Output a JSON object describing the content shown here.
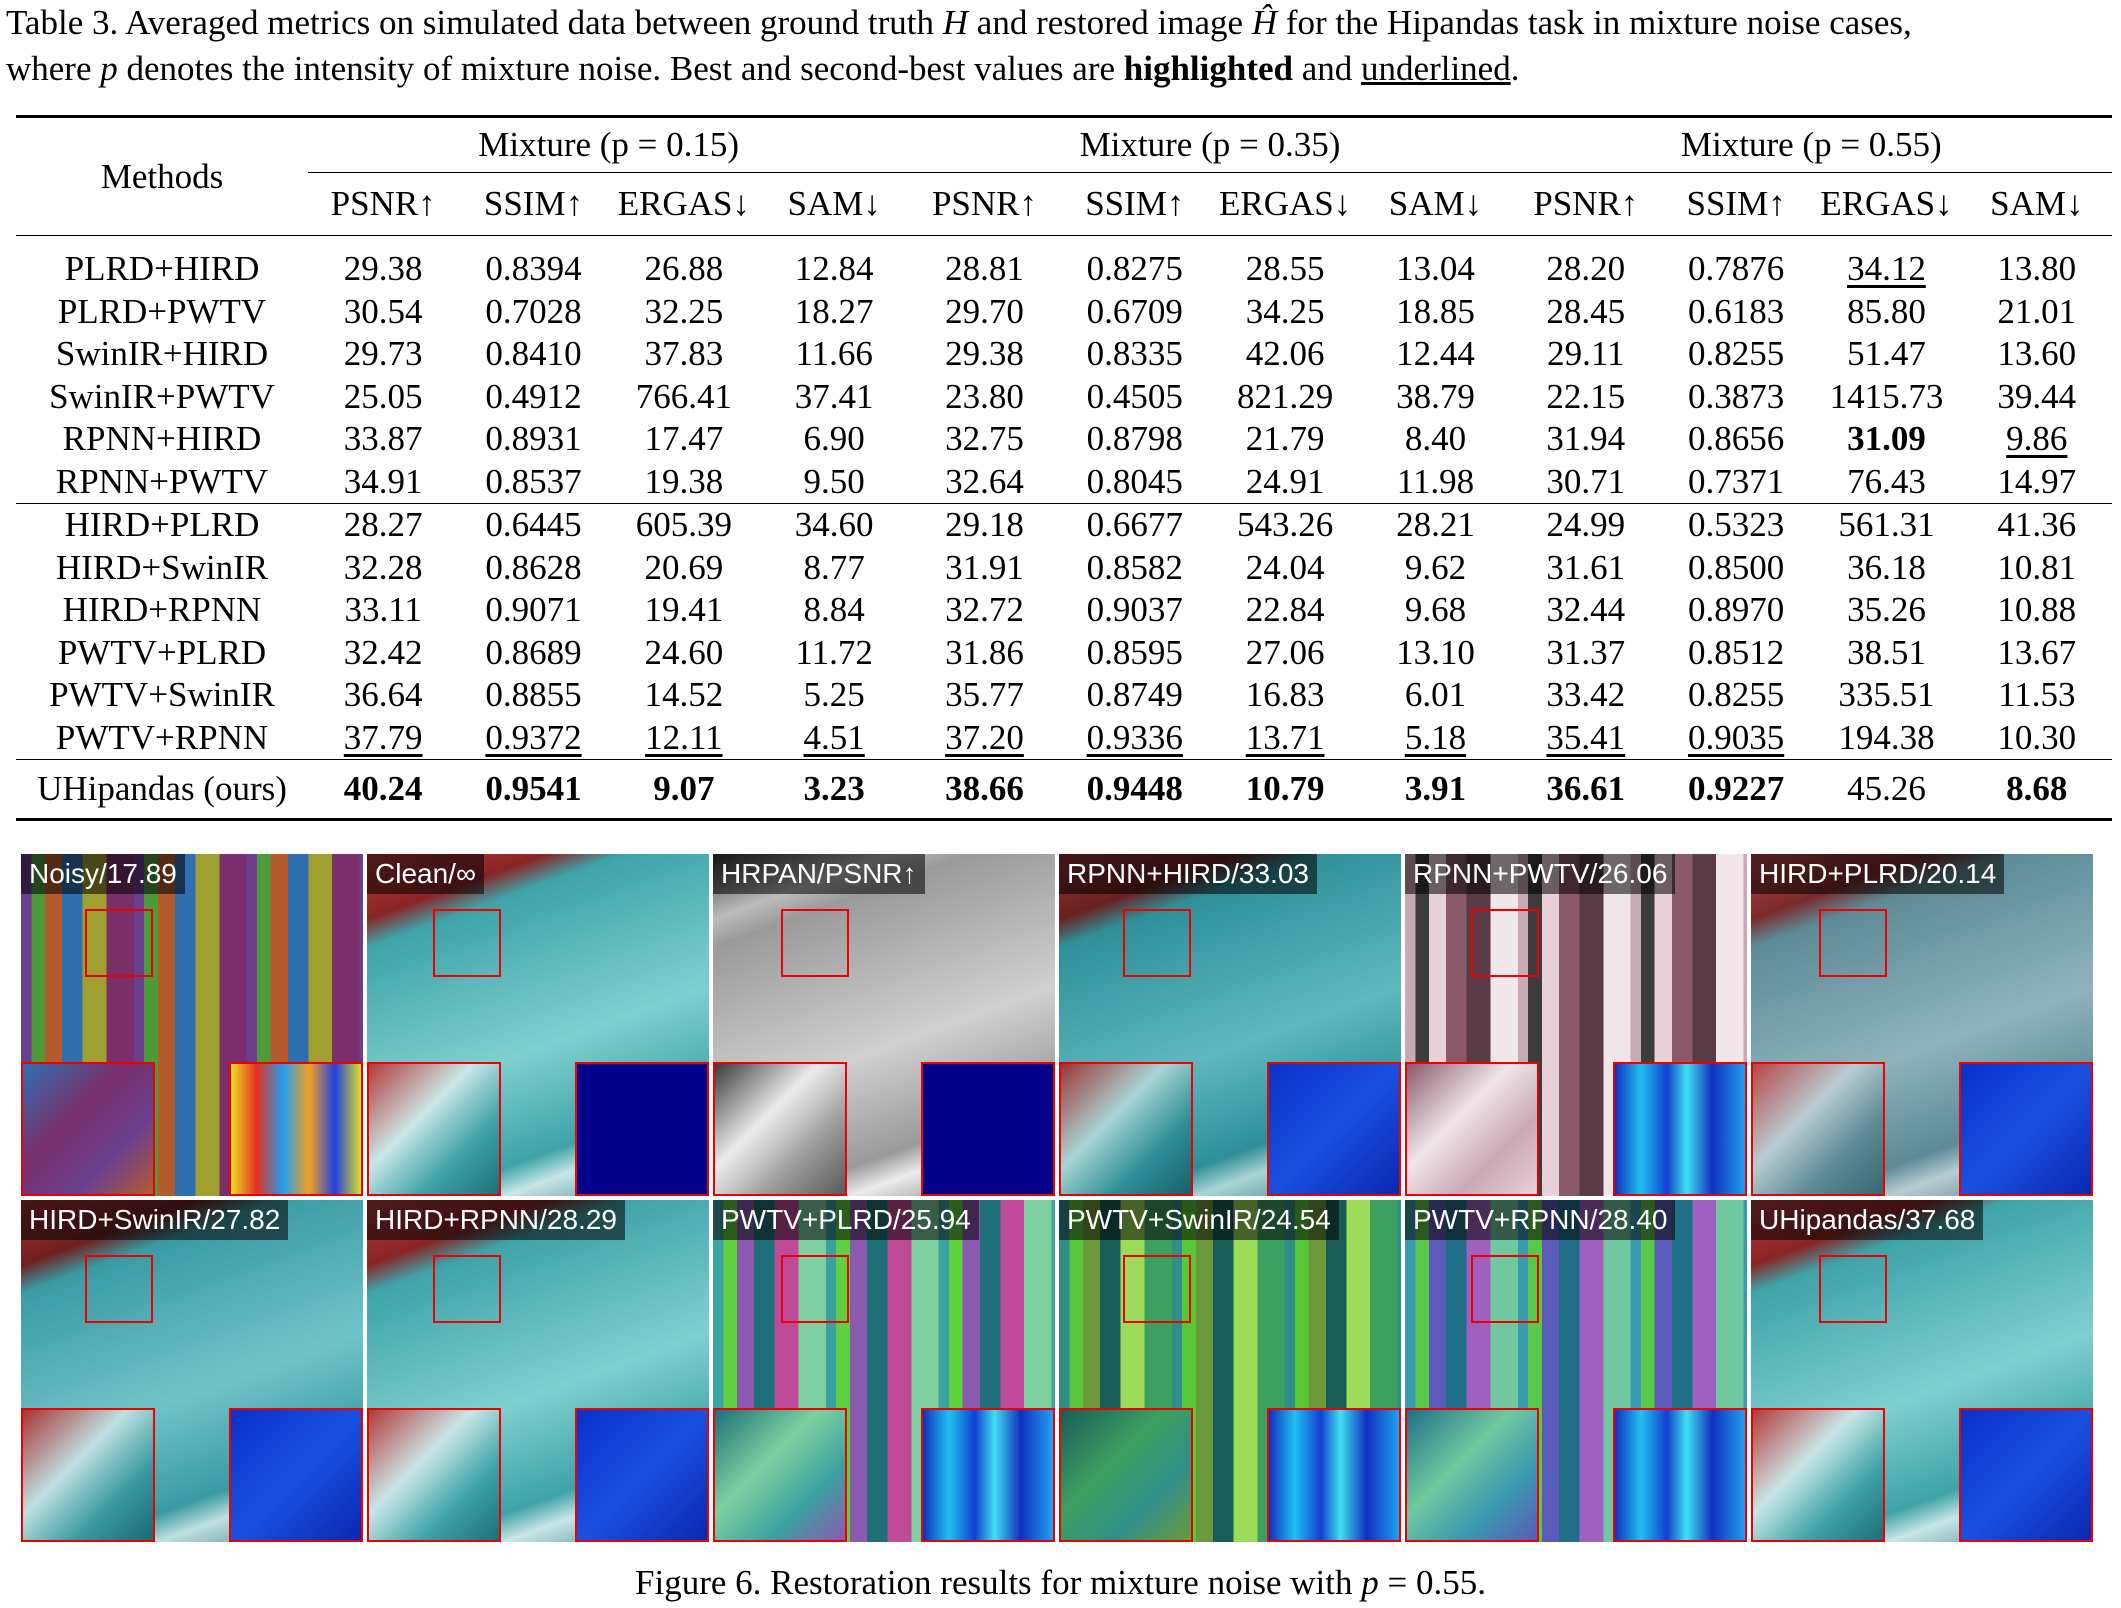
{
  "table_caption": {
    "prefix": "Table 3. Averaged metrics on simulated data between ground truth ",
    "var_h": "H",
    "middle": " and restored image ",
    "var_hhat": "Ĥ",
    "suffix": " for the Hipandas task in mixture noise cases,",
    "line2_a": "where ",
    "var_p": "p",
    "line2_b": " denotes the intensity of mixture noise. Best and second-best values are ",
    "highlighted": "highlighted",
    "and": " and ",
    "underlined": "underlined",
    "period": "."
  },
  "table": {
    "methods_header": "Methods",
    "groups": [
      "Mixture (p = 0.15)",
      "Mixture (p = 0.35)",
      "Mixture (p = 0.55)"
    ],
    "metrics": [
      "PSNR↑",
      "SSIM↑",
      "ERGAS↓",
      "SAM↓"
    ],
    "rows": [
      {
        "method": "PLRD+HIRD",
        "v": [
          "29.38",
          "0.8394",
          "26.88",
          "12.84",
          "28.81",
          "0.8275",
          "28.55",
          "13.04",
          "28.20",
          "0.7876",
          "34.12",
          "13.80"
        ],
        "fmt": [
          "",
          "",
          "",
          "",
          "",
          "",
          "",
          "",
          "",
          "",
          "u",
          ""
        ]
      },
      {
        "method": "PLRD+PWTV",
        "v": [
          "30.54",
          "0.7028",
          "32.25",
          "18.27",
          "29.70",
          "0.6709",
          "34.25",
          "18.85",
          "28.45",
          "0.6183",
          "85.80",
          "21.01"
        ],
        "fmt": [
          "",
          "",
          "",
          "",
          "",
          "",
          "",
          "",
          "",
          "",
          "",
          ""
        ]
      },
      {
        "method": "SwinIR+HIRD",
        "v": [
          "29.73",
          "0.8410",
          "37.83",
          "11.66",
          "29.38",
          "0.8335",
          "42.06",
          "12.44",
          "29.11",
          "0.8255",
          "51.47",
          "13.60"
        ],
        "fmt": [
          "",
          "",
          "",
          "",
          "",
          "",
          "",
          "",
          "",
          "",
          "",
          ""
        ]
      },
      {
        "method": "SwinIR+PWTV",
        "v": [
          "25.05",
          "0.4912",
          "766.41",
          "37.41",
          "23.80",
          "0.4505",
          "821.29",
          "38.79",
          "22.15",
          "0.3873",
          "1415.73",
          "39.44"
        ],
        "fmt": [
          "",
          "",
          "",
          "",
          "",
          "",
          "",
          "",
          "",
          "",
          "",
          ""
        ]
      },
      {
        "method": "RPNN+HIRD",
        "v": [
          "33.87",
          "0.8931",
          "17.47",
          "6.90",
          "32.75",
          "0.8798",
          "21.79",
          "8.40",
          "31.94",
          "0.8656",
          "31.09",
          "9.86"
        ],
        "fmt": [
          "",
          "",
          "",
          "",
          "",
          "",
          "",
          "",
          "",
          "",
          "b",
          "u"
        ]
      },
      {
        "method": "RPNN+PWTV",
        "v": [
          "34.91",
          "0.8537",
          "19.38",
          "9.50",
          "32.64",
          "0.8045",
          "24.91",
          "11.98",
          "30.71",
          "0.7371",
          "76.43",
          "14.97"
        ],
        "fmt": [
          "",
          "",
          "",
          "",
          "",
          "",
          "",
          "",
          "",
          "",
          "",
          ""
        ]
      },
      {
        "method": "HIRD+PLRD",
        "v": [
          "28.27",
          "0.6445",
          "605.39",
          "34.60",
          "29.18",
          "0.6677",
          "543.26",
          "28.21",
          "24.99",
          "0.5323",
          "561.31",
          "41.36"
        ],
        "fmt": [
          "",
          "",
          "",
          "",
          "",
          "",
          "",
          "",
          "",
          "",
          "",
          ""
        ]
      },
      {
        "method": "HIRD+SwinIR",
        "v": [
          "32.28",
          "0.8628",
          "20.69",
          "8.77",
          "31.91",
          "0.8582",
          "24.04",
          "9.62",
          "31.61",
          "0.8500",
          "36.18",
          "10.81"
        ],
        "fmt": [
          "",
          "",
          "",
          "",
          "",
          "",
          "",
          "",
          "",
          "",
          "",
          ""
        ]
      },
      {
        "method": "HIRD+RPNN",
        "v": [
          "33.11",
          "0.9071",
          "19.41",
          "8.84",
          "32.72",
          "0.9037",
          "22.84",
          "9.68",
          "32.44",
          "0.8970",
          "35.26",
          "10.88"
        ],
        "fmt": [
          "",
          "",
          "",
          "",
          "",
          "",
          "",
          "",
          "",
          "",
          "",
          ""
        ]
      },
      {
        "method": "PWTV+PLRD",
        "v": [
          "32.42",
          "0.8689",
          "24.60",
          "11.72",
          "31.86",
          "0.8595",
          "27.06",
          "13.10",
          "31.37",
          "0.8512",
          "38.51",
          "13.67"
        ],
        "fmt": [
          "",
          "",
          "",
          "",
          "",
          "",
          "",
          "",
          "",
          "",
          "",
          ""
        ]
      },
      {
        "method": "PWTV+SwinIR",
        "v": [
          "36.64",
          "0.8855",
          "14.52",
          "5.25",
          "35.77",
          "0.8749",
          "16.83",
          "6.01",
          "33.42",
          "0.8255",
          "335.51",
          "11.53"
        ],
        "fmt": [
          "",
          "",
          "",
          "",
          "",
          "",
          "",
          "",
          "",
          "",
          "",
          ""
        ]
      },
      {
        "method": "PWTV+RPNN",
        "v": [
          "37.79",
          "0.9372",
          "12.11",
          "4.51",
          "37.20",
          "0.9336",
          "13.71",
          "5.18",
          "35.41",
          "0.9035",
          "194.38",
          "10.30"
        ],
        "fmt": [
          "u",
          "u",
          "u",
          "u",
          "u",
          "u",
          "u",
          "u",
          "u",
          "u",
          "",
          ""
        ]
      },
      {
        "method": "UHipandas (ours)",
        "v": [
          "40.24",
          "0.9541",
          "9.07",
          "3.23",
          "38.66",
          "0.9448",
          "10.79",
          "3.91",
          "36.61",
          "0.9227",
          "45.26",
          "8.68"
        ],
        "fmt": [
          "b",
          "b",
          "b",
          "b",
          "b",
          "b",
          "b",
          "b",
          "b",
          "b",
          "",
          "b"
        ]
      }
    ]
  },
  "figure": {
    "tiles": [
      {
        "label": "Noisy/17.89",
        "style": "noisy"
      },
      {
        "label": "Clean/∞",
        "style": "clean"
      },
      {
        "label": "HRPAN/PSNR↑",
        "style": "pan"
      },
      {
        "label": "RPNN+HIRD/33.03",
        "style": "clean2"
      },
      {
        "label": "RPNN+PWTV/26.06",
        "style": "stripe"
      },
      {
        "label": "HIRD+PLRD/20.14",
        "style": "clean3"
      },
      {
        "label": "HIRD+SwinIR/27.82",
        "style": "clean4"
      },
      {
        "label": "HIRD+RPNN/28.29",
        "style": "clean"
      },
      {
        "label": "PWTV+PLRD/25.94",
        "style": "green"
      },
      {
        "label": "PWTV+SwinIR/24.54",
        "style": "green2"
      },
      {
        "label": "PWTV+RPNN/28.40",
        "style": "green3"
      },
      {
        "label": "UHipandas/37.68",
        "style": "clean"
      }
    ],
    "caption_prefix": "Figure 6. Restoration results for mixture noise with ",
    "caption_var": "p",
    "caption_suffix": " = 0.55."
  },
  "colors": {
    "highlight_box": "#e00000",
    "err_map_blue": "#00008b",
    "label_bg": "#000000"
  }
}
